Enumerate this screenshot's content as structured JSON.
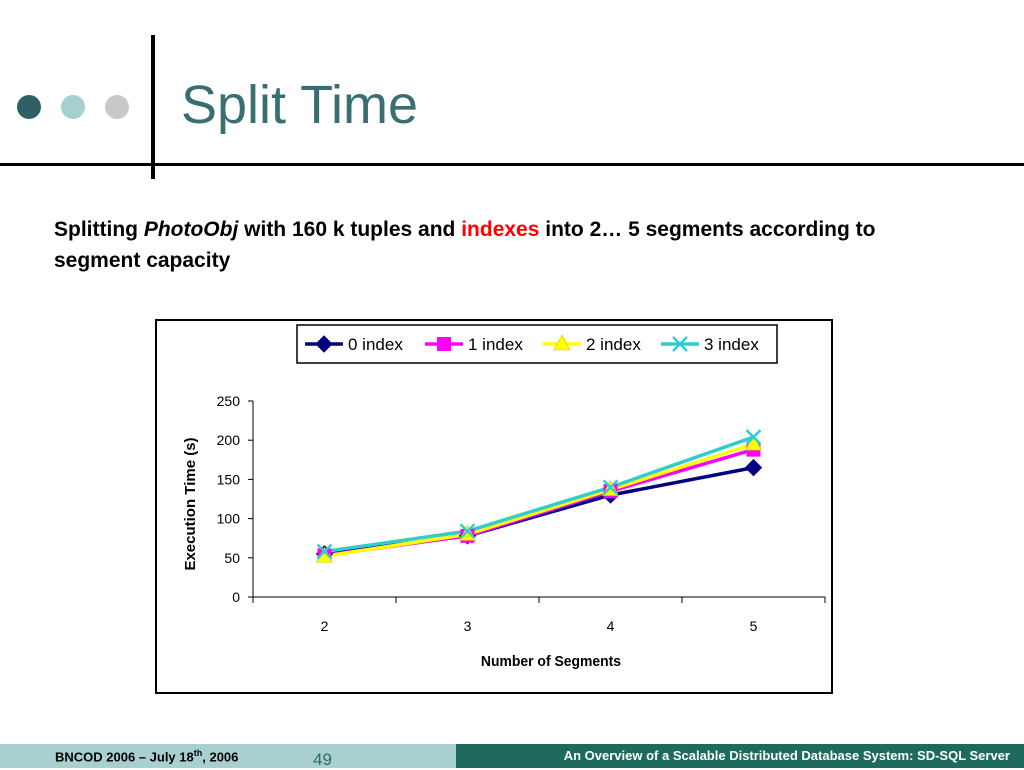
{
  "slide": {
    "title": "Split Time",
    "subtitle_parts": {
      "p1": "Splitting ",
      "p2": "PhotoObj",
      "p3": " with 160 k tuples and ",
      "p4": "indexes",
      "p5": " into 2… 5 segments according to segment capacity"
    },
    "decor_dot_colors": [
      "#2e6065",
      "#a6d0d0",
      "#c8c8c8"
    ],
    "title_color": "#3a6f72"
  },
  "footer": {
    "date_prefix": "BNCOD 2006 – July 18",
    "date_sup": "th",
    "date_suffix": ",  2006",
    "page_number": "49",
    "right_text": "An Overview of a Scalable Distributed Database System: SD-SQL Server"
  },
  "chart_data": {
    "type": "line",
    "title": "",
    "xlabel": "Number of Segments",
    "ylabel": "Execution Time (s)",
    "categories": [
      "2",
      "3",
      "4",
      "5"
    ],
    "ylim": [
      0,
      250
    ],
    "yticks": [
      0,
      50,
      100,
      150,
      200,
      250
    ],
    "grid": false,
    "legend_position": "top",
    "series": [
      {
        "name": "0 index",
        "values": [
          55,
          78,
          130,
          165
        ],
        "color": "#000080",
        "marker": "diamond"
      },
      {
        "name": "1 index",
        "values": [
          53,
          78,
          135,
          188
        ],
        "color": "#ff00ff",
        "marker": "square"
      },
      {
        "name": "2 index",
        "values": [
          52,
          80,
          137,
          195
        ],
        "color": "#ffff00",
        "marker": "triangle"
      },
      {
        "name": "3 index",
        "values": [
          58,
          84,
          140,
          204
        ],
        "color": "#33cccc",
        "marker": "x"
      }
    ]
  }
}
